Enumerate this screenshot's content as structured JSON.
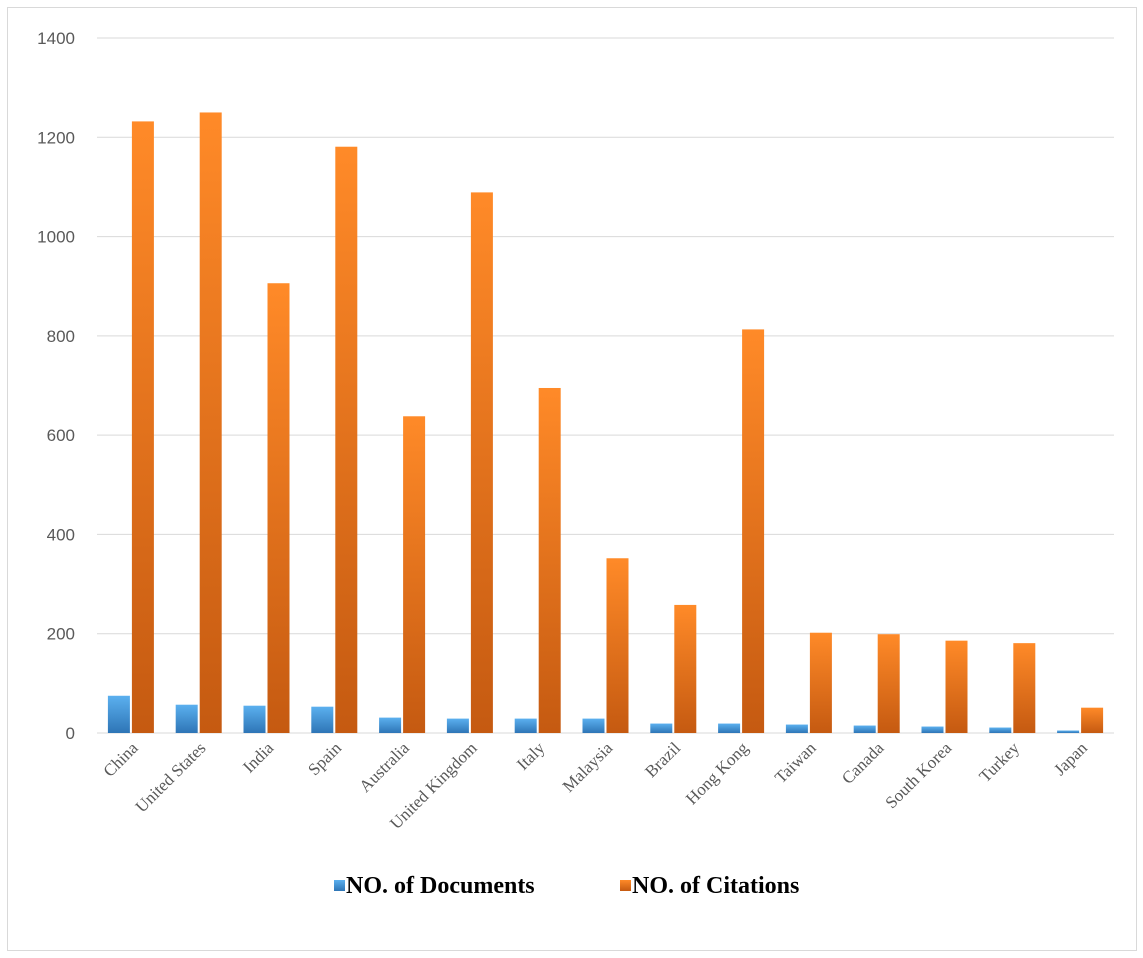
{
  "chart_data": {
    "type": "bar",
    "categories": [
      "China",
      "United States",
      "India",
      "Spain",
      "Australia",
      "United Kingdom",
      "Italy",
      "Malaysia",
      "Brazil",
      "Hong Kong",
      "Taiwan",
      "Canada",
      "South Korea",
      "Turkey",
      "Japan"
    ],
    "series": [
      {
        "name": "NO. of Documents",
        "values": [
          75,
          57,
          55,
          53,
          31,
          29,
          29,
          29,
          19,
          19,
          17,
          15,
          13,
          11,
          5
        ],
        "color": "#4a9fe0"
      },
      {
        "name": "NO. of Citations",
        "values": [
          1232,
          1250,
          906,
          1181,
          638,
          1089,
          695,
          352,
          258,
          813,
          202,
          199,
          186,
          181,
          51
        ],
        "color": "#f07d22"
      }
    ],
    "title": "",
    "xlabel": "",
    "ylabel": "",
    "ylim": [
      0,
      1400
    ],
    "yticks": [
      "0",
      "200",
      "400",
      "600",
      "800",
      "1000",
      "1200",
      "1400"
    ],
    "grid": true,
    "legend_position": "bottom"
  }
}
